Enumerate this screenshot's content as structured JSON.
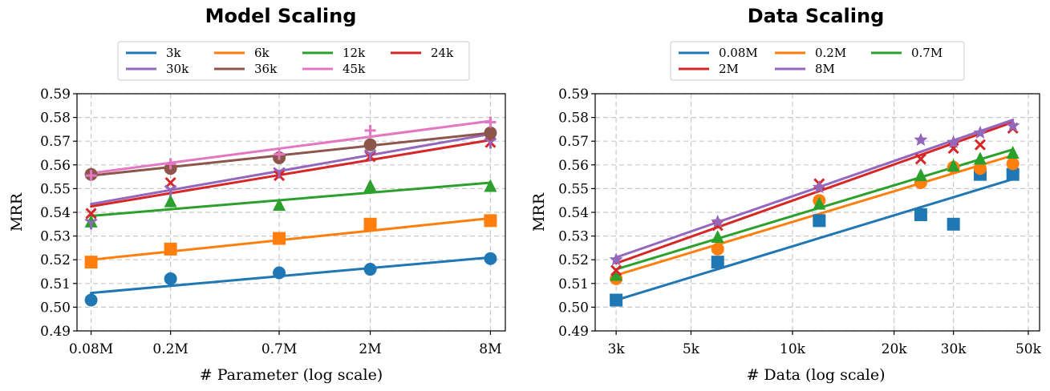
{
  "colors": {
    "3k": "#1f77b4",
    "6k": "#ff7f0e",
    "12k": "#2ca02c",
    "24k": "#d62728",
    "30k": "#9467bd",
    "36k": "#8c564b",
    "45k": "#e377c2"
  },
  "chart_data": [
    {
      "type": "scatter",
      "title": "Model Scaling",
      "xlabel": "# Parameter (log scale)",
      "ylabel": "MRR",
      "xscale": "log",
      "x_ticks": [
        {
          "value": 0.08,
          "label": "0.08M"
        },
        {
          "value": 0.2,
          "label": "0.2M"
        },
        {
          "value": 0.7,
          "label": "0.7M"
        },
        {
          "value": 2,
          "label": "2M"
        },
        {
          "value": 8,
          "label": "8M"
        }
      ],
      "xlim": [
        0.068,
        9.5
      ],
      "ylim": [
        0.49,
        0.59
      ],
      "y_ticks": [
        "0.49",
        "0.50",
        "0.51",
        "0.52",
        "0.53",
        "0.54",
        "0.55",
        "0.56",
        "0.57",
        "0.58",
        "0.59"
      ],
      "grid": true,
      "legend": {
        "placement": "top",
        "columns": 4
      },
      "series": [
        {
          "name": "3k",
          "color": "#1f77b4",
          "marker": "circle",
          "x": [
            0.08,
            0.2,
            0.7,
            2,
            8
          ],
          "y": [
            0.503,
            0.512,
            0.5145,
            0.516,
            0.5205
          ],
          "fit": [
            0.506,
            0.521
          ]
        },
        {
          "name": "6k",
          "color": "#ff7f0e",
          "marker": "square",
          "x": [
            0.08,
            0.2,
            0.7,
            2,
            8
          ],
          "y": [
            0.519,
            0.5245,
            0.529,
            0.535,
            0.5365
          ],
          "fit": [
            0.52,
            0.5375
          ]
        },
        {
          "name": "12k",
          "color": "#2ca02c",
          "marker": "triangle",
          "x": [
            0.08,
            0.2,
            0.7,
            2,
            8
          ],
          "y": [
            0.536,
            0.5445,
            0.543,
            0.551,
            0.551
          ],
          "fit": [
            0.5385,
            0.5525
          ]
        },
        {
          "name": "24k",
          "color": "#d62728",
          "marker": "x",
          "x": [
            0.08,
            0.2,
            0.7,
            2,
            8
          ],
          "y": [
            0.5395,
            0.5525,
            0.5555,
            0.5635,
            0.5695
          ],
          "fit": [
            0.5425,
            0.5705
          ]
        },
        {
          "name": "30k",
          "color": "#9467bd",
          "marker": "tri_down",
          "x": [
            0.08,
            0.2,
            0.7,
            2,
            8
          ],
          "y": [
            0.5355,
            0.5495,
            0.557,
            0.5645,
            0.5695
          ],
          "fit": [
            0.5435,
            0.573
          ]
        },
        {
          "name": "36k",
          "color": "#8c564b",
          "marker": "circle",
          "x": [
            0.08,
            0.2,
            0.7,
            2,
            8
          ],
          "y": [
            0.556,
            0.5585,
            0.563,
            0.5685,
            0.5735
          ],
          "fit": [
            0.5555,
            0.5735
          ]
        },
        {
          "name": "45k",
          "color": "#e377c2",
          "marker": "plus",
          "x": [
            0.08,
            0.2,
            0.7,
            2,
            8
          ],
          "y": [
            0.5555,
            0.5605,
            0.5645,
            0.5745,
            0.578
          ],
          "fit": [
            0.5565,
            0.5785
          ]
        }
      ]
    },
    {
      "type": "scatter",
      "title": "Data Scaling",
      "xlabel": "# Data (log scale)",
      "ylabel": "MRR",
      "xscale": "log",
      "x_ticks": [
        {
          "value": 3,
          "label": "3k"
        },
        {
          "value": 5,
          "label": "5k"
        },
        {
          "value": 10,
          "label": "10k"
        },
        {
          "value": 20,
          "label": "20k"
        },
        {
          "value": 30,
          "label": "30k"
        },
        {
          "value": 50,
          "label": "50k"
        }
      ],
      "xlim": [
        2.6,
        54
      ],
      "ylim": [
        0.49,
        0.59
      ],
      "y_ticks": [
        "0.49",
        "0.50",
        "0.51",
        "0.52",
        "0.53",
        "0.54",
        "0.55",
        "0.56",
        "0.57",
        "0.58",
        "0.59"
      ],
      "grid": true,
      "legend": {
        "placement": "top",
        "columns": 3
      },
      "series": [
        {
          "name": "0.08M",
          "color": "#1f77b4",
          "marker": "square",
          "x": [
            3,
            6,
            12,
            24,
            30,
            36,
            45
          ],
          "y": [
            0.503,
            0.519,
            0.5365,
            0.539,
            0.535,
            0.556,
            0.556
          ],
          "fit": [
            0.503,
            0.554
          ]
        },
        {
          "name": "0.2M",
          "color": "#ff7f0e",
          "marker": "circle",
          "x": [
            3,
            6,
            12,
            24,
            30,
            36,
            45
          ],
          "y": [
            0.512,
            0.5245,
            0.545,
            0.5525,
            0.559,
            0.5585,
            0.5605
          ],
          "fit": [
            0.5135,
            0.564
          ]
        },
        {
          "name": "0.7M",
          "color": "#2ca02c",
          "marker": "triangle",
          "x": [
            3,
            6,
            12,
            24,
            30,
            36,
            45
          ],
          "y": [
            0.5135,
            0.5295,
            0.5435,
            0.5555,
            0.5595,
            0.5625,
            0.565
          ],
          "fit": [
            0.516,
            0.5665
          ]
        },
        {
          "name": "2M",
          "color": "#d62728",
          "marker": "x",
          "x": [
            3,
            6,
            12,
            24,
            30,
            36,
            45
          ],
          "y": [
            0.5155,
            0.5345,
            0.552,
            0.5625,
            0.567,
            0.5685,
            0.5755
          ],
          "fit": [
            0.5185,
            0.578
          ]
        },
        {
          "name": "8M",
          "color": "#9467bd",
          "marker": "star",
          "x": [
            3,
            6,
            12,
            24,
            30,
            36,
            45
          ],
          "y": [
            0.52,
            0.536,
            0.5505,
            0.5705,
            0.5695,
            0.5735,
            0.5765
          ],
          "fit": [
            0.521,
            0.579
          ]
        }
      ]
    }
  ]
}
